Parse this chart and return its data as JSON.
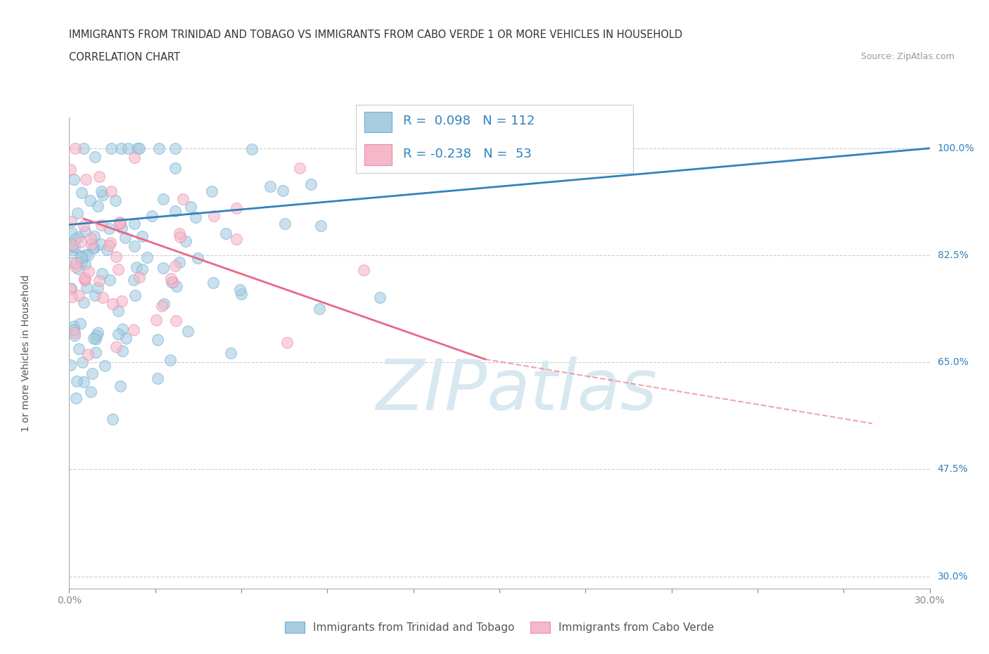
{
  "title_line1": "IMMIGRANTS FROM TRINIDAD AND TOBAGO VS IMMIGRANTS FROM CABO VERDE 1 OR MORE VEHICLES IN HOUSEHOLD",
  "title_line2": "CORRELATION CHART",
  "source_text": "Source: ZipAtlas.com",
  "ylabel": "1 or more Vehicles in Household",
  "xlim": [
    0.0,
    30.0
  ],
  "ylim": [
    28.0,
    105.0
  ],
  "x_ticks": [
    0.0,
    3.0,
    6.0,
    9.0,
    12.0,
    15.0,
    18.0,
    21.0,
    24.0,
    27.0,
    30.0
  ],
  "x_tick_labels": [
    "0.0%",
    "",
    "",
    "",
    "",
    "",
    "",
    "",
    "",
    "",
    "30.0%"
  ],
  "y_ticks": [
    30.0,
    47.5,
    65.0,
    82.5,
    100.0
  ],
  "y_tick_labels": [
    "30.0%",
    "47.5%",
    "65.0%",
    "82.5%",
    "100.0%"
  ],
  "legend_r1": "R =  0.098",
  "legend_n1": "N = 112",
  "legend_r2": "R = -0.238",
  "legend_n2": "N =  53",
  "blue_color": "#a8cce0",
  "pink_color": "#f4b8c8",
  "blue_edge_color": "#6aafd6",
  "pink_edge_color": "#f08aaa",
  "blue_line_color": "#3182bd",
  "pink_line_color": "#e8688a",
  "grid_color": "#cccccc",
  "watermark_color": "#d8e8f0",
  "watermark_text": "ZIPatlas",
  "blue_N": 112,
  "pink_N": 53,
  "seed_blue": 42,
  "seed_pink": 99,
  "dot_size": 130,
  "dot_alpha": 0.6,
  "legend_label_blue": "Immigrants from Trinidad and Tobago",
  "legend_label_pink": "Immigrants from Cabo Verde",
  "title_fontsize": 10.5,
  "subtitle_fontsize": 10.5,
  "axis_label_fontsize": 10,
  "tick_fontsize": 10,
  "legend_fontsize": 13,
  "blue_line_y0": 87.5,
  "blue_line_y1": 100.0,
  "blue_line_x0": 0.0,
  "blue_line_x1": 30.0,
  "pink_line_y0": 88.5,
  "pink_line_y1": 65.5,
  "pink_line_x0": 0.5,
  "pink_line_x1": 14.5,
  "pink_dash_y0": 65.5,
  "pink_dash_y1": 55.0,
  "pink_dash_x0": 14.5,
  "pink_dash_x1": 28.0
}
